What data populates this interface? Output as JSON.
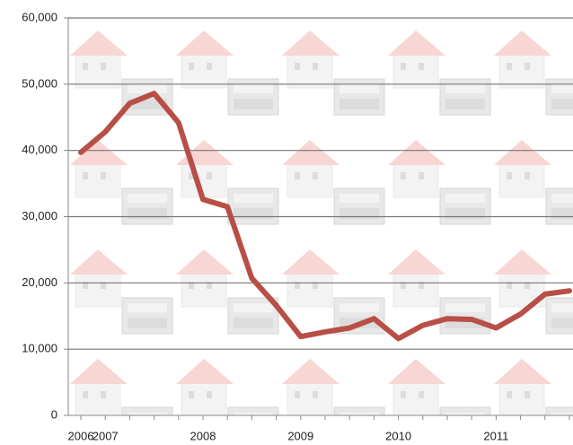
{
  "chart_data": {
    "type": "line",
    "categories": [
      "2006",
      "2007",
      null,
      null,
      null,
      "2008",
      null,
      null,
      null,
      "2009",
      null,
      null,
      null,
      "2010",
      null,
      null,
      null,
      "2011",
      null,
      null,
      null
    ],
    "series": [
      {
        "color": "#b84f47",
        "values": [
          39700,
          42800,
          47100,
          48600,
          44200,
          32600,
          31500,
          20700,
          16600,
          11900,
          12600,
          13200,
          14600,
          11600,
          13600,
          14600,
          14500,
          13200,
          15300,
          18300,
          18800
        ]
      }
    ],
    "ylim": [
      0,
      60000
    ],
    "yticks": [
      0,
      {
        "value": 10000,
        "label": "10,000"
      },
      {
        "value": 20000,
        "label": "20,000"
      },
      {
        "value": 30000,
        "label": "30,000"
      },
      {
        "value": 40000,
        "label": "40,000"
      },
      {
        "value": 50000,
        "label": "50,000"
      },
      {
        "value": 60000,
        "label": "60,000"
      }
    ],
    "grid": true
  }
}
